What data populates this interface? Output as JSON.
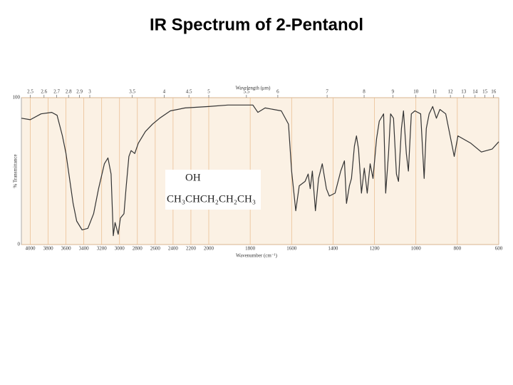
{
  "chart_data": {
    "type": "line",
    "title": "IR Spectrum of 2-Pentanol",
    "xlabel": "Wavenumber (cm⁻¹)",
    "x2label": "Wavelength (μm)",
    "ylabel": "% Transmittance",
    "annotation": {
      "label": "OH",
      "formula": "CH₃CHCH₂CH₂CH₃"
    },
    "scale_break": 2000,
    "xlim": [
      4100,
      600
    ],
    "xticks": [
      4000,
      3800,
      3600,
      3400,
      3200,
      3000,
      2800,
      2600,
      2400,
      2200,
      2000,
      1800,
      1600,
      1400,
      1200,
      1000,
      800,
      600
    ],
    "x2ticks": [
      2.5,
      2.6,
      2.7,
      2.8,
      2.9,
      3,
      3.5,
      4,
      4.5,
      5,
      5.5,
      6,
      7,
      8,
      9,
      10,
      11,
      12,
      13,
      14,
      15,
      16
    ],
    "ylim": [
      0,
      100
    ],
    "yticks": [
      0,
      100
    ],
    "grid": true,
    "color": "#333333",
    "x": [
      4100,
      4000,
      3880,
      3760,
      3700,
      3640,
      3600,
      3560,
      3520,
      3480,
      3420,
      3355,
      3290,
      3235,
      3170,
      3130,
      3095,
      3070,
      3050,
      3015,
      2990,
      2950,
      2925,
      2895,
      2870,
      2830,
      2790,
      2710,
      2630,
      2550,
      2430,
      2265,
      2000,
      1907,
      1787,
      1763,
      1728,
      1650,
      1615,
      1600,
      1580,
      1563,
      1535,
      1520,
      1510,
      1500,
      1485,
      1470,
      1452,
      1432,
      1418,
      1390,
      1363,
      1345,
      1335,
      1321,
      1311,
      1297,
      1287,
      1277,
      1263,
      1249,
      1235,
      1221,
      1207,
      1190,
      1177,
      1156,
      1146,
      1132,
      1122,
      1108,
      1094,
      1084,
      1070,
      1060,
      1046,
      1036,
      1022,
      1005,
      977,
      960,
      950,
      936,
      919,
      901,
      884,
      856,
      832,
      815,
      797,
      735,
      684,
      632,
      600
    ],
    "values": [
      86,
      85,
      89,
      90,
      88,
      74,
      62,
      45,
      28,
      16,
      10,
      11,
      21,
      38,
      55,
      59,
      48,
      6,
      15,
      7,
      18,
      21,
      40,
      60,
      64,
      62,
      69,
      77,
      82,
      86,
      91,
      93,
      94,
      95,
      95,
      90,
      93,
      91,
      82,
      50,
      23,
      40,
      43,
      48,
      38,
      50,
      23,
      45,
      55,
      38,
      33,
      35,
      50,
      57,
      28,
      40,
      45,
      67,
      74,
      65,
      35,
      52,
      35,
      55,
      45,
      72,
      84,
      89,
      35,
      62,
      89,
      86,
      48,
      43,
      79,
      91,
      62,
      50,
      89,
      91,
      89,
      45,
      79,
      89,
      94,
      86,
      92,
      89,
      72,
      60,
      74,
      69,
      63,
      65,
      70
    ]
  }
}
